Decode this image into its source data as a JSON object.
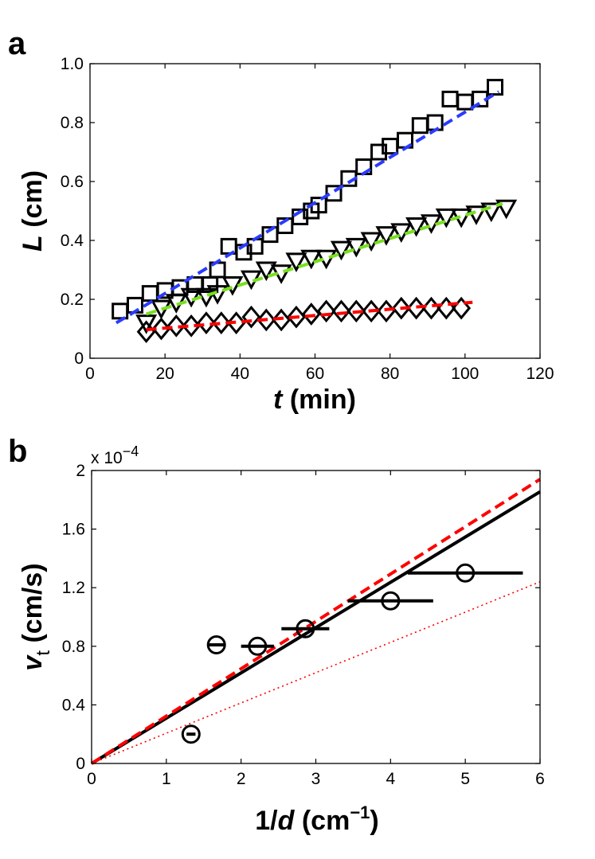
{
  "chart_data": [
    {
      "type": "scatter",
      "panel_label": "a",
      "xlabel_var": "t",
      "xlabel_unit": " (min)",
      "ylabel_var": "L",
      "ylabel_unit": " (cm)",
      "xlim": [
        0,
        120
      ],
      "ylim": [
        0,
        1.0
      ],
      "xticks": [
        0,
        20,
        40,
        60,
        80,
        100,
        120
      ],
      "xtick_labels": [
        "0",
        "20",
        "40",
        "60",
        "80",
        "100",
        "120"
      ],
      "yticks": [
        0,
        0.2,
        0.4,
        0.6,
        0.8,
        1.0
      ],
      "ytick_labels": [
        "0",
        "0.2",
        "0.4",
        "0.6",
        "0.8",
        "1.0"
      ],
      "grid": false,
      "series": [
        {
          "marker": "square",
          "x": [
            8,
            12,
            16,
            20,
            24,
            28,
            32,
            34,
            37,
            41,
            44,
            48,
            52,
            56,
            59,
            61,
            65,
            69,
            73,
            77,
            80,
            84,
            88,
            92,
            96,
            100,
            104,
            108
          ],
          "y": [
            0.16,
            0.18,
            0.22,
            0.23,
            0.24,
            0.25,
            0.25,
            0.3,
            0.38,
            0.36,
            0.38,
            0.42,
            0.45,
            0.48,
            0.5,
            0.52,
            0.56,
            0.61,
            0.65,
            0.7,
            0.72,
            0.74,
            0.79,
            0.8,
            0.88,
            0.87,
            0.88,
            0.92
          ]
        },
        {
          "marker": "triangle-down",
          "x": [
            15,
            19,
            23,
            27,
            31,
            34,
            38,
            43,
            47,
            51,
            55,
            59,
            63,
            67,
            71,
            75,
            79,
            83,
            87,
            91,
            95,
            99,
            103,
            107,
            111
          ],
          "y": [
            0.12,
            0.17,
            0.19,
            0.21,
            0.21,
            0.22,
            0.25,
            0.27,
            0.3,
            0.29,
            0.33,
            0.34,
            0.34,
            0.37,
            0.38,
            0.4,
            0.42,
            0.43,
            0.45,
            0.46,
            0.48,
            0.48,
            0.49,
            0.5,
            0.51
          ]
        },
        {
          "marker": "diamond",
          "x": [
            15,
            19,
            23,
            27,
            31,
            35,
            39,
            43,
            47,
            51,
            55,
            59,
            63,
            67,
            71,
            75,
            79,
            83,
            87,
            91,
            95,
            99
          ],
          "y": [
            0.09,
            0.1,
            0.11,
            0.11,
            0.12,
            0.12,
            0.12,
            0.14,
            0.13,
            0.13,
            0.14,
            0.15,
            0.16,
            0.16,
            0.16,
            0.16,
            0.16,
            0.17,
            0.17,
            0.17,
            0.17,
            0.17
          ]
        }
      ],
      "fit_lines": [
        {
          "color": "#2a3bff",
          "dash": "dashed",
          "x": [
            7,
            109
          ],
          "y": [
            0.12,
            0.905
          ]
        },
        {
          "color": "#77e01f",
          "dash": "dashed",
          "x": [
            15,
            110
          ],
          "y": [
            0.15,
            0.525
          ]
        },
        {
          "color": "#ff0000",
          "dash": "dashed",
          "x": [
            15,
            102
          ],
          "y": [
            0.097,
            0.19
          ]
        }
      ]
    },
    {
      "type": "scatter",
      "panel_label": "b",
      "xlabel_var": "1/d",
      "xlabel_unit": " (cm",
      "xlabel_exp": "−1",
      "xlabel_close": ")",
      "ylabel_var": "v",
      "ylabel_sub": "t",
      "ylabel_unit": " (cm/s)",
      "scale_note": "x 10",
      "scale_exp": "−4",
      "xlim": [
        0,
        6
      ],
      "ylim": [
        0,
        2
      ],
      "xticks": [
        0,
        1,
        2,
        3,
        4,
        5,
        6
      ],
      "xtick_labels": [
        "0",
        "1",
        "2",
        "3",
        "4",
        "5",
        "6"
      ],
      "yticks": [
        0,
        0.4,
        0.8,
        1.2,
        1.6,
        2
      ],
      "ytick_labels": [
        "0",
        "0.4",
        "0.8",
        "1.2",
        "1.6",
        "2"
      ],
      "grid": false,
      "points": [
        {
          "x": 1.33,
          "y": 0.2,
          "xerr": 0.06
        },
        {
          "x": 1.67,
          "y": 0.81,
          "xerr": 0.1
        },
        {
          "x": 2.22,
          "y": 0.8,
          "xerr": 0.22
        },
        {
          "x": 2.86,
          "y": 0.92,
          "xerr": 0.32
        },
        {
          "x": 4.0,
          "y": 1.11,
          "xerr": 0.57
        },
        {
          "x": 5.0,
          "y": 1.3,
          "xerr": 0.77
        }
      ],
      "lines": [
        {
          "color": "#000000",
          "style": "solid",
          "x": [
            0,
            6
          ],
          "y": [
            0,
            1.855
          ]
        },
        {
          "color": "#ff0000",
          "style": "dashed",
          "x": [
            0,
            6
          ],
          "y": [
            0,
            1.94
          ]
        },
        {
          "color": "#ff0000",
          "style": "dotted",
          "x": [
            0,
            6
          ],
          "y": [
            0,
            1.24
          ]
        }
      ]
    }
  ]
}
